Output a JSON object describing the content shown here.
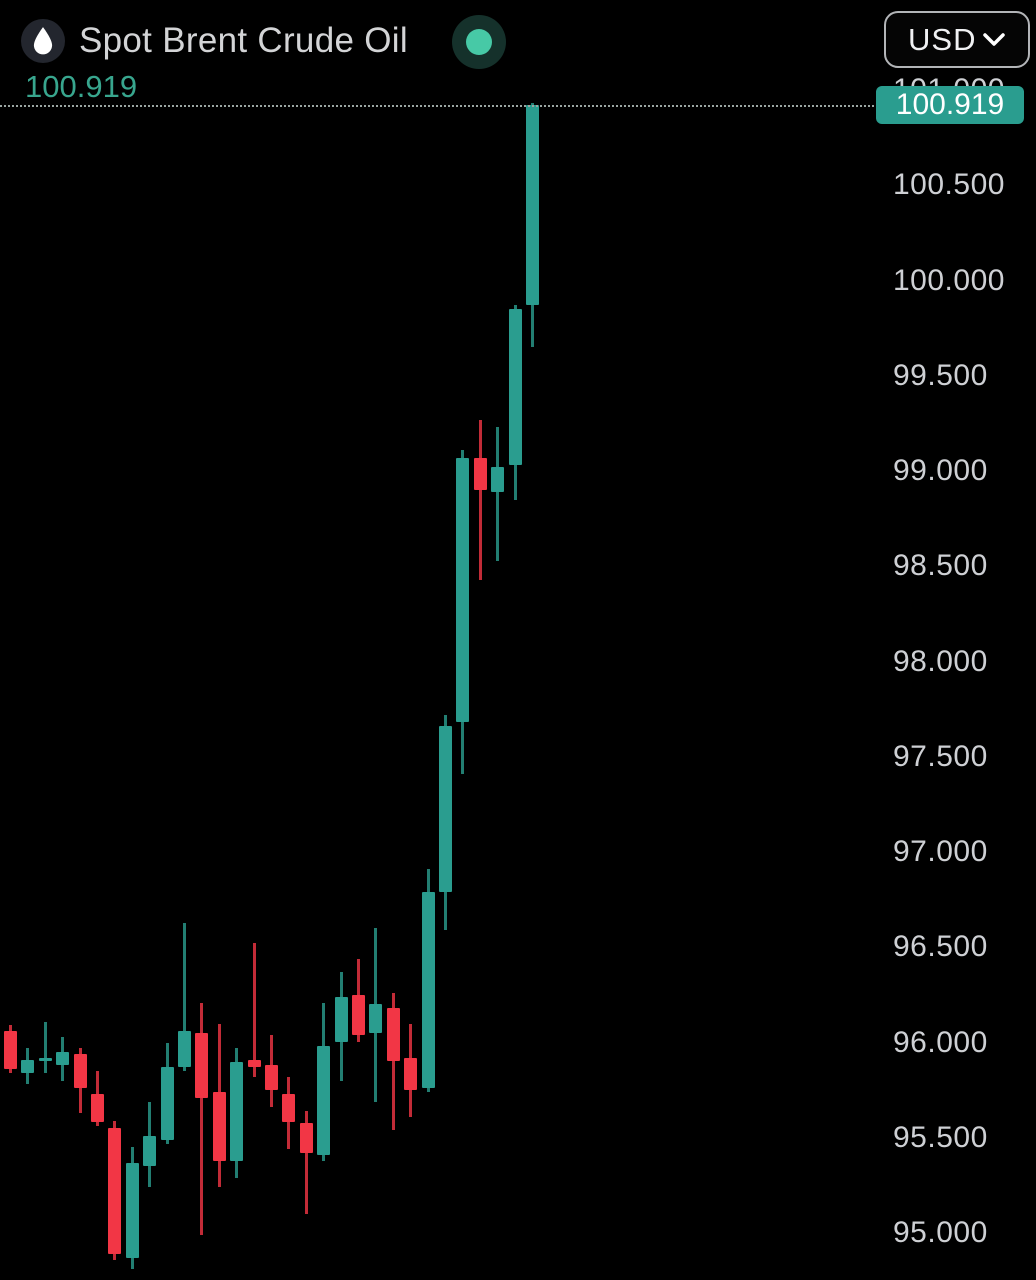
{
  "header": {
    "title": "Spot Brent Crude Oil",
    "logo_icon": "oil-drop-icon",
    "live_indicator": "live-status-on",
    "currency_selector": {
      "value": "USD",
      "chevron_icon": "chevron-down-icon"
    }
  },
  "colors": {
    "background": "#000000",
    "up": "#2a9d8f",
    "down": "#f23645",
    "badge_bg": "#2a9d8f",
    "current_price_text": "#38a68e",
    "axis_text": "#ced0d4",
    "title_text": "#d3d4d6",
    "live_dot": "#47c9a6"
  },
  "chart_data": {
    "type": "candlestick",
    "title": "Spot Brent Crude Oil",
    "currency": "USD",
    "current_price": "100.919",
    "y_axis": {
      "min": 94.75,
      "max": 101.05,
      "tick_step": 0.5,
      "tick_labels": [
        "101.000",
        "100.500",
        "100.000",
        "99.500",
        "99.000",
        "98.500",
        "98.000",
        "97.500",
        "97.000",
        "96.500",
        "96.000",
        "95.500",
        "95.000"
      ],
      "grid": false,
      "side": "right"
    },
    "x_axis": {
      "labels_visible": false
    },
    "candles": [
      {
        "o": 96.06,
        "h": 96.09,
        "l": 95.84,
        "c": 95.86
      },
      {
        "o": 95.84,
        "h": 95.97,
        "l": 95.78,
        "c": 95.91
      },
      {
        "o": 95.9,
        "h": 96.11,
        "l": 95.84,
        "c": 95.92
      },
      {
        "o": 95.88,
        "h": 96.03,
        "l": 95.8,
        "c": 95.95
      },
      {
        "o": 95.94,
        "h": 95.97,
        "l": 95.63,
        "c": 95.76
      },
      {
        "o": 95.73,
        "h": 95.85,
        "l": 95.56,
        "c": 95.58
      },
      {
        "o": 95.55,
        "h": 95.59,
        "l": 94.86,
        "c": 94.89
      },
      {
        "o": 94.87,
        "h": 95.45,
        "l": 94.81,
        "c": 95.37
      },
      {
        "o": 95.35,
        "h": 95.69,
        "l": 95.24,
        "c": 95.51
      },
      {
        "o": 95.49,
        "h": 96.0,
        "l": 95.47,
        "c": 95.87
      },
      {
        "o": 95.87,
        "h": 96.63,
        "l": 95.85,
        "c": 96.06
      },
      {
        "o": 96.05,
        "h": 96.21,
        "l": 94.99,
        "c": 95.71
      },
      {
        "o": 95.74,
        "h": 96.1,
        "l": 95.24,
        "c": 95.38
      },
      {
        "o": 95.38,
        "h": 95.97,
        "l": 95.29,
        "c": 95.9
      },
      {
        "o": 95.91,
        "h": 96.52,
        "l": 95.82,
        "c": 95.87
      },
      {
        "o": 95.88,
        "h": 96.04,
        "l": 95.66,
        "c": 95.75
      },
      {
        "o": 95.73,
        "h": 95.82,
        "l": 95.44,
        "c": 95.58
      },
      {
        "o": 95.58,
        "h": 95.64,
        "l": 95.1,
        "c": 95.42
      },
      {
        "o": 95.41,
        "h": 96.21,
        "l": 95.38,
        "c": 95.98
      },
      {
        "o": 96.0,
        "h": 96.37,
        "l": 95.8,
        "c": 96.24
      },
      {
        "o": 96.25,
        "h": 96.44,
        "l": 96.0,
        "c": 96.04
      },
      {
        "o": 96.05,
        "h": 96.6,
        "l": 95.69,
        "c": 96.2
      },
      {
        "o": 96.18,
        "h": 96.26,
        "l": 95.54,
        "c": 95.9
      },
      {
        "o": 95.92,
        "h": 96.1,
        "l": 95.61,
        "c": 95.75
      },
      {
        "o": 95.76,
        "h": 96.91,
        "l": 95.74,
        "c": 96.79
      },
      {
        "o": 96.79,
        "h": 97.72,
        "l": 96.59,
        "c": 97.66
      },
      {
        "o": 97.68,
        "h": 99.11,
        "l": 97.41,
        "c": 99.07
      },
      {
        "o": 99.07,
        "h": 99.27,
        "l": 98.43,
        "c": 98.9
      },
      {
        "o": 98.89,
        "h": 99.23,
        "l": 98.53,
        "c": 99.02
      },
      {
        "o": 99.03,
        "h": 99.87,
        "l": 98.85,
        "c": 99.85
      },
      {
        "o": 99.87,
        "h": 100.93,
        "l": 99.65,
        "c": 100.919
      }
    ]
  }
}
